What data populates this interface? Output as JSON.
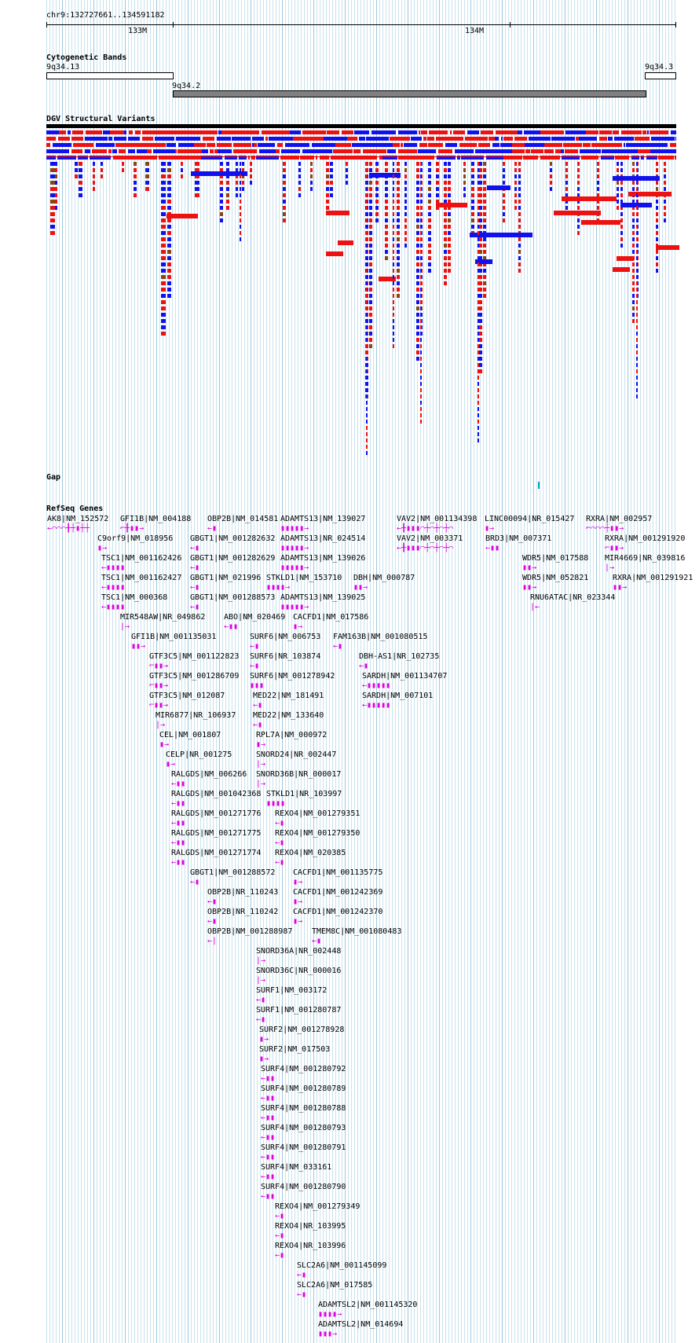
{
  "ruler": {
    "region": "chr9:132727661..134591182",
    "ticks": [
      "133M",
      "134M"
    ]
  },
  "tracks": {
    "cytobands": "Cytogenetic Bands",
    "dgv": "DGV Structural Variants",
    "gap": "Gap",
    "refseq": "RefSeq Genes"
  },
  "cytobands": [
    "9q34.13",
    "9q34.2",
    "9q34.3"
  ],
  "colors": {
    "gain": "#ee1111",
    "loss": "#1111ee",
    "complex": "#8b4513",
    "gene": "#e000e0",
    "gap": "#00a0c0",
    "grid": "#c9e2ee",
    "band_gpos": "#808080"
  },
  "genes": [
    {
      "label": "AK8|NM_152572",
      "glyph": "←⌒⌒⌒╂┼▮┼┼"
    },
    {
      "label": "GFI1B|NM_004188",
      "glyph": "⌐╂▮▮→"
    },
    {
      "label": "OBP2B|NM_014581",
      "glyph": "←▮"
    },
    {
      "label": "ADAMTS13|NM_139027",
      "glyph": "▮▮▮▮▮→"
    },
    {
      "label": "VAV2|NM_001134398",
      "glyph": "←╂▮▮▮⌒┼⌒┼⌒┼⌒"
    },
    {
      "label": "LINC00094|NR_015427",
      "glyph": "▮→"
    },
    {
      "label": "RXRA|NM_002957",
      "glyph": "⌐⌒⌒⌒┼▮▮→"
    },
    {
      "label": "C9orf9|NM_018956",
      "glyph": "▮→"
    },
    {
      "label": "GBGT1|NM_001282632",
      "glyph": "←▮"
    },
    {
      "label": "ADAMTS13|NR_024514",
      "glyph": "▮▮▮▮▮→"
    },
    {
      "label": "VAV2|NM_003371",
      "glyph": "←╂▮▮▮⌒┼⌒┼⌒┼⌒"
    },
    {
      "label": "BRD3|NM_007371",
      "glyph": "←▮▮"
    },
    {
      "label": "RXRA|NM_001291920",
      "glyph": "⌐▮▮→"
    },
    {
      "label": "TSC1|NM_001162426",
      "glyph": "←▮▮▮▮"
    },
    {
      "label": "GBGT1|NM_001282629",
      "glyph": "←▮"
    },
    {
      "label": "ADAMTS13|NM_139026",
      "glyph": "▮▮▮▮▮→"
    },
    {
      "label": "WDR5|NM_017588",
      "glyph": "▮▮→"
    },
    {
      "label": "MIR4669|NR_039816",
      "glyph": "|→"
    },
    {
      "label": "TSC1|NM_001162427",
      "glyph": "←▮▮▮▮"
    },
    {
      "label": "GBGT1|NM_021996",
      "glyph": "←▮"
    },
    {
      "label": "STKLD1|NM_153710",
      "glyph": "▮▮▮▮→"
    },
    {
      "label": "DBH|NM_000787",
      "glyph": "▮▮→"
    },
    {
      "label": "WDR5|NM_052821",
      "glyph": "▮▮→"
    },
    {
      "label": "RXRA|NM_001291921",
      "glyph": "▮▮→"
    },
    {
      "label": "TSC1|NM_000368",
      "glyph": "←▮▮▮▮"
    },
    {
      "label": "GBGT1|NM_001288573",
      "glyph": "←▮"
    },
    {
      "label": "ADAMTS13|NM_139025",
      "glyph": "▮▮▮▮▮→"
    },
    {
      "label": "RNU6ATAC|NR_023344",
      "glyph": "|←"
    },
    {
      "label": "MIR548AW|NR_049862",
      "glyph": "|→"
    },
    {
      "label": "ABO|NM_020469",
      "glyph": "←▮▮"
    },
    {
      "label": "CACFD1|NM_017586",
      "glyph": "▮→"
    },
    {
      "label": "GFI1B|NM_001135031",
      "glyph": "▮▮→"
    },
    {
      "label": "SURF6|NM_006753",
      "glyph": "←▮"
    },
    {
      "label": "FAM163B|NM_001080515",
      "glyph": "←▮"
    },
    {
      "label": "GTF3C5|NM_001122823",
      "glyph": "⌐▮▮→"
    },
    {
      "label": "SURF6|NR_103874",
      "glyph": "←▮"
    },
    {
      "label": "DBH-AS1|NR_102735",
      "glyph": "←▮"
    },
    {
      "label": "GTF3C5|NM_001286709",
      "glyph": "⌐▮▮→"
    },
    {
      "label": "SURF6|NM_001278942",
      "glyph": "▮▮▮"
    },
    {
      "label": "SARDH|NM_001134707",
      "glyph": "←▮▮▮▮▮"
    },
    {
      "label": "GTF3C5|NM_012087",
      "glyph": "⌐▮▮→"
    },
    {
      "label": "MED22|NM_181491",
      "glyph": "←▮"
    },
    {
      "label": "SARDH|NM_007101",
      "glyph": "←▮▮▮▮▮"
    },
    {
      "label": "MIR6877|NR_106937",
      "glyph": "|→"
    },
    {
      "label": "MED22|NM_133640",
      "glyph": "←▮"
    },
    {
      "label": "CEL|NM_001807",
      "glyph": "▮→"
    },
    {
      "label": "RPL7A|NM_000972",
      "glyph": "▮→"
    },
    {
      "label": "CELP|NR_001275",
      "glyph": "▮→"
    },
    {
      "label": "SNORD24|NR_002447",
      "glyph": "|→"
    },
    {
      "label": "RALGDS|NM_006266",
      "glyph": "←▮▮"
    },
    {
      "label": "SNORD36B|NR_000017",
      "glyph": "|→"
    },
    {
      "label": "RALGDS|NM_001042368",
      "glyph": "←▮▮"
    },
    {
      "label": "STKLD1|NR_103997",
      "glyph": "▮▮▮▮"
    },
    {
      "label": "RALGDS|NM_001271776",
      "glyph": "←▮▮"
    },
    {
      "label": "REXO4|NM_001279351",
      "glyph": "←▮"
    },
    {
      "label": "RALGDS|NM_001271775",
      "glyph": "←▮▮"
    },
    {
      "label": "REXO4|NM_001279350",
      "glyph": "←▮"
    },
    {
      "label": "RALGDS|NM_001271774",
      "glyph": "←▮▮"
    },
    {
      "label": "REXO4|NM_020385",
      "glyph": "←▮"
    },
    {
      "label": "GBGT1|NM_001288572",
      "glyph": "←▮"
    },
    {
      "label": "CACFD1|NM_001135775",
      "glyph": "▮→"
    },
    {
      "label": "OBP2B|NR_110243",
      "glyph": "←▮"
    },
    {
      "label": "CACFD1|NM_001242369",
      "glyph": "▮→"
    },
    {
      "label": "OBP2B|NR_110242",
      "glyph": "←▮"
    },
    {
      "label": "CACFD1|NM_001242370",
      "glyph": "▮→"
    },
    {
      "label": "OBP2B|NM_001288987",
      "glyph": "←|"
    },
    {
      "label": "TMEM8C|NM_001080483",
      "glyph": "←▮"
    },
    {
      "label": "SNORD36A|NR_002448",
      "glyph": "|→"
    },
    {
      "label": "SNORD36C|NR_000016",
      "glyph": "|→"
    },
    {
      "label": "SURF1|NM_003172",
      "glyph": "←▮"
    },
    {
      "label": "SURF1|NM_001280787",
      "glyph": "←▮"
    },
    {
      "label": "SURF2|NM_001278928",
      "glyph": "▮→"
    },
    {
      "label": "SURF2|NM_017503",
      "glyph": "▮→"
    },
    {
      "label": "SURF4|NM_001280792",
      "glyph": "←▮▮"
    },
    {
      "label": "SURF4|NM_001280789",
      "glyph": "←▮▮"
    },
    {
      "label": "SURF4|NM_001280788",
      "glyph": "←▮▮"
    },
    {
      "label": "SURF4|NM_001280793",
      "glyph": "←▮▮"
    },
    {
      "label": "SURF4|NM_001280791",
      "glyph": "←▮▮"
    },
    {
      "label": "SURF4|NM_033161",
      "glyph": "←▮▮"
    },
    {
      "label": "SURF4|NM_001280790",
      "glyph": "←▮▮"
    },
    {
      "label": "REXO4|NM_001279349",
      "glyph": "←▮"
    },
    {
      "label": "REXO4|NR_103995",
      "glyph": "←▮"
    },
    {
      "label": "REXO4|NR_103996",
      "glyph": "←▮"
    },
    {
      "label": "SLC2A6|NM_001145099",
      "glyph": "←▮"
    },
    {
      "label": "SLC2A6|NM_017585",
      "glyph": "←▮"
    },
    {
      "label": "ADAMTSL2|NM_001145320",
      "glyph": "▮▮▮▮→"
    },
    {
      "label": "ADAMTSL2|NM_014694",
      "glyph": "▮▮▮→"
    }
  ]
}
